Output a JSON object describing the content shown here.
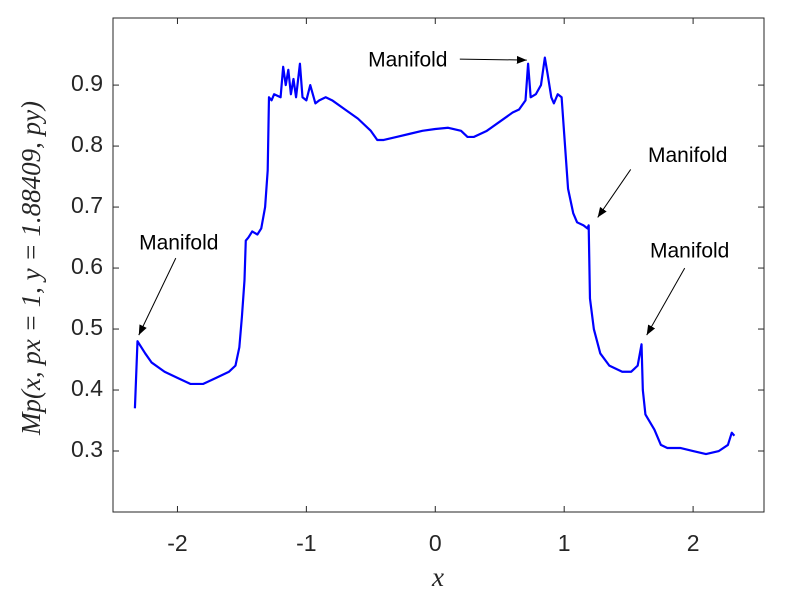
{
  "chart_data": {
    "type": "line",
    "xlabel": "x",
    "ylabel": "Mp(x, px = 1, y = 1.88409, py)",
    "x": [
      -2.33,
      -2.31,
      -2.25,
      -2.2,
      -2.1,
      -2.0,
      -1.9,
      -1.8,
      -1.7,
      -1.6,
      -1.55,
      -1.52,
      -1.5,
      -1.48,
      -1.47,
      -1.45,
      -1.42,
      -1.38,
      -1.35,
      -1.32,
      -1.3,
      -1.29,
      -1.27,
      -1.25,
      -1.2,
      -1.18,
      -1.16,
      -1.14,
      -1.12,
      -1.1,
      -1.08,
      -1.05,
      -1.03,
      -1.0,
      -0.97,
      -0.93,
      -0.9,
      -0.85,
      -0.8,
      -0.7,
      -0.6,
      -0.5,
      -0.45,
      -0.4,
      -0.3,
      -0.2,
      -0.1,
      0.0,
      0.1,
      0.2,
      0.25,
      0.3,
      0.4,
      0.5,
      0.6,
      0.65,
      0.7,
      0.72,
      0.74,
      0.78,
      0.82,
      0.85,
      0.87,
      0.9,
      0.92,
      0.95,
      0.98,
      1.0,
      1.03,
      1.07,
      1.1,
      1.15,
      1.18,
      1.19,
      1.2,
      1.23,
      1.28,
      1.35,
      1.45,
      1.52,
      1.57,
      1.6,
      1.61,
      1.63,
      1.7,
      1.75,
      1.8,
      1.9,
      2.0,
      2.1,
      2.2,
      2.27,
      2.3,
      2.32
    ],
    "series": [
      {
        "color": "#0000ff",
        "values": [
          0.37,
          0.48,
          0.46,
          0.445,
          0.43,
          0.42,
          0.41,
          0.41,
          0.42,
          0.43,
          0.44,
          0.47,
          0.52,
          0.58,
          0.645,
          0.65,
          0.66,
          0.655,
          0.665,
          0.7,
          0.76,
          0.88,
          0.875,
          0.885,
          0.88,
          0.93,
          0.9,
          0.925,
          0.885,
          0.91,
          0.88,
          0.935,
          0.88,
          0.875,
          0.9,
          0.87,
          0.875,
          0.88,
          0.875,
          0.86,
          0.845,
          0.825,
          0.81,
          0.81,
          0.815,
          0.82,
          0.825,
          0.828,
          0.83,
          0.825,
          0.815,
          0.815,
          0.825,
          0.84,
          0.855,
          0.86,
          0.875,
          0.935,
          0.88,
          0.885,
          0.9,
          0.945,
          0.92,
          0.88,
          0.87,
          0.885,
          0.88,
          0.82,
          0.73,
          0.69,
          0.675,
          0.67,
          0.665,
          0.67,
          0.55,
          0.5,
          0.46,
          0.44,
          0.43,
          0.43,
          0.44,
          0.475,
          0.4,
          0.36,
          0.335,
          0.31,
          0.305,
          0.305,
          0.3,
          0.295,
          0.3,
          0.31,
          0.33,
          0.325
        ]
      }
    ],
    "xlim": [
      -2.5,
      2.55
    ],
    "xticks": [
      -2,
      -1,
      0,
      1,
      2
    ],
    "ylim": [
      0.2,
      1.01
    ],
    "yticks": [
      0.3,
      0.4,
      0.5,
      0.6,
      0.7,
      0.8,
      0.9
    ],
    "grid": false,
    "annotations": [
      {
        "text": "Manifold",
        "xy": [
          -2.3,
          0.49
        ]
      },
      {
        "text": "Manifold",
        "xy": [
          0.71,
          0.941
        ]
      },
      {
        "text": "Manifold",
        "xy": [
          1.26,
          0.683
        ]
      },
      {
        "text": "Manifold",
        "xy": [
          1.64,
          0.49
        ]
      }
    ]
  }
}
